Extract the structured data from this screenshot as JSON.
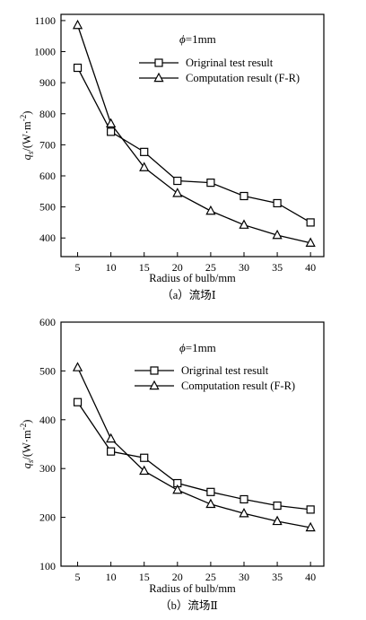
{
  "chart_data": [
    {
      "type": "line",
      "caption": "（a）流场Ⅰ",
      "xlabel": "Radius of bulb/mm",
      "ylabel_main": "q",
      "ylabel_sub": "s",
      "ylabel_unit": "/(W·m",
      "ylabel_unit_sup": "-2",
      "ylabel_unit_end": ")",
      "annotation_symbol": "ϕ",
      "annotation_value": "=1mm",
      "xlim": [
        2.5,
        42
      ],
      "ylim": [
        340,
        1120
      ],
      "x": [
        5,
        10,
        15,
        20,
        25,
        30,
        35,
        40
      ],
      "xticks": [
        5,
        10,
        15,
        20,
        25,
        30,
        35,
        40
      ],
      "yticks": [
        400,
        500,
        600,
        700,
        800,
        900,
        1000,
        1100
      ],
      "series": [
        {
          "name": "Origrinal test result",
          "marker": "square",
          "values": [
            948,
            742,
            677,
            584,
            578,
            535,
            512,
            450
          ]
        },
        {
          "name": "Computation result (F-R)",
          "marker": "triangle",
          "values": [
            1085,
            768,
            627,
            544,
            487,
            442,
            409,
            384
          ]
        }
      ]
    },
    {
      "type": "line",
      "caption": "（b）流场Ⅱ",
      "xlabel": "Radius of bulb/mm",
      "ylabel_main": "q",
      "ylabel_sub": "s",
      "ylabel_unit": "/(W·m",
      "ylabel_unit_sup": "-2",
      "ylabel_unit_end": ")",
      "annotation_symbol": "ϕ",
      "annotation_value": "=1mm",
      "xlim": [
        2.5,
        42
      ],
      "ylim": [
        100,
        600
      ],
      "x": [
        5,
        10,
        15,
        20,
        25,
        30,
        35,
        40
      ],
      "xticks": [
        5,
        10,
        15,
        20,
        25,
        30,
        35,
        40
      ],
      "yticks": [
        100,
        200,
        300,
        400,
        500,
        600
      ],
      "series": [
        {
          "name": "Origrinal test result",
          "marker": "square",
          "values": [
            436,
            335,
            322,
            270,
            252,
            237,
            224,
            216
          ]
        },
        {
          "name": "Computation result (F-R)",
          "marker": "triangle",
          "values": [
            507,
            361,
            295,
            256,
            227,
            208,
            192,
            179
          ]
        }
      ]
    }
  ]
}
